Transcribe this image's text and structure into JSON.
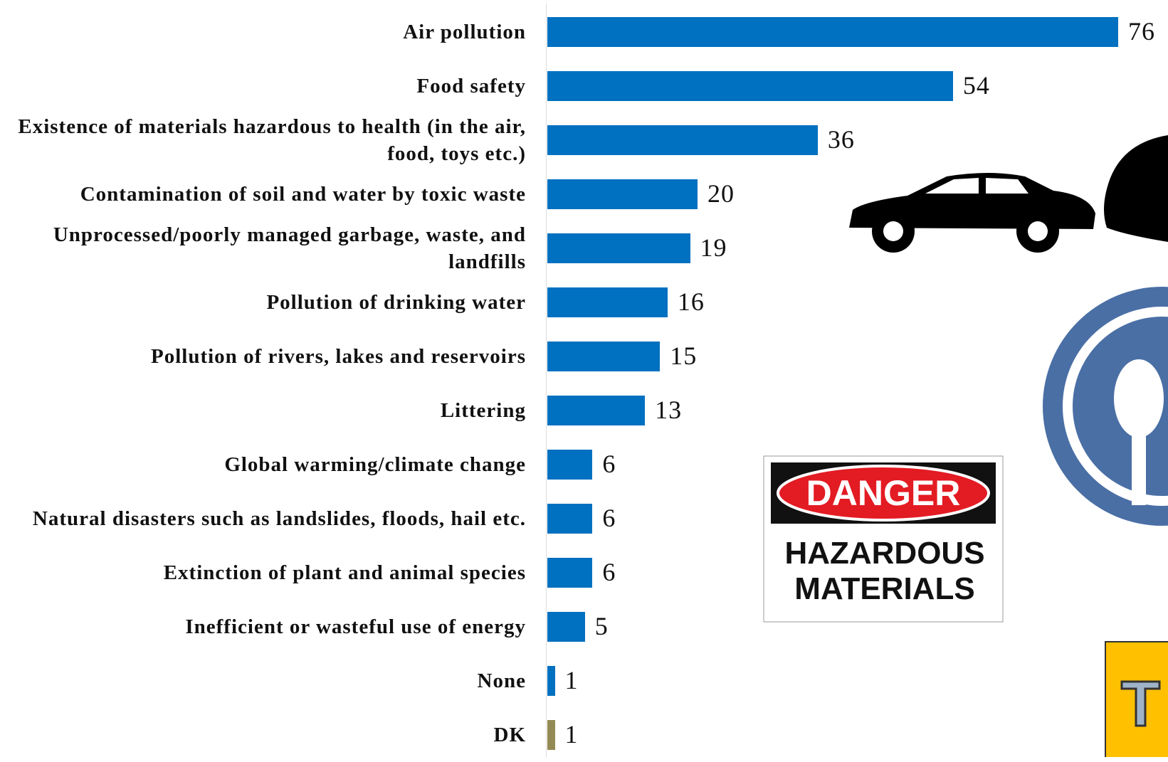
{
  "chart_data": {
    "type": "bar",
    "orientation": "horizontal",
    "categories": [
      "Air pollution",
      "Food safety",
      "Existence of materials hazardous to health (in the air, food, toys etc.)",
      "Contamination of soil and water by toxic waste",
      "Unprocessed/poorly managed garbage, waste, and landfills",
      "Pollution of drinking water",
      "Pollution of rivers, lakes and reservoirs",
      "Littering",
      "Global warming/climate change",
      "Natural disasters such as landslides, floods, hail etc.",
      "Extinction of plant and animal species",
      "Inefficient or wasteful use of energy",
      "None",
      "DK"
    ],
    "values": [
      76,
      54,
      36,
      20,
      19,
      16,
      15,
      13,
      6,
      6,
      6,
      5,
      1,
      1
    ],
    "colors": [
      "#0070c0",
      "#0070c0",
      "#0070c0",
      "#0070c0",
      "#0070c0",
      "#0070c0",
      "#0070c0",
      "#0070c0",
      "#0070c0",
      "#0070c0",
      "#0070c0",
      "#0070c0",
      "#0070c0",
      "#948a54"
    ],
    "xlim": [
      0,
      76
    ]
  },
  "decorations": {
    "sign_header": "DANGER",
    "sign_body": "HAZARDOUS MATERIALS",
    "logo_text": "T"
  }
}
